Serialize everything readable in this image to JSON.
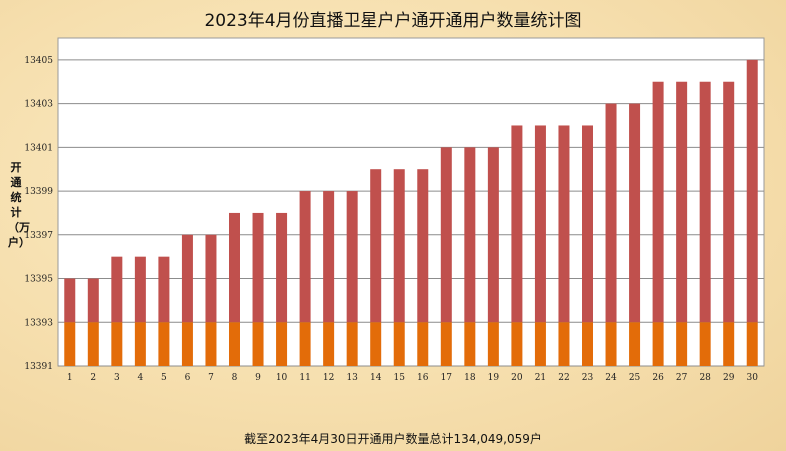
{
  "chart_data": {
    "type": "bar",
    "title": "2023年4月份直播卫星户户通开通用户数量统计图",
    "ylabel": "开通统计（万户）",
    "xlabel": "",
    "ylim": [
      13391,
      13406
    ],
    "yticks": [
      13391,
      13393,
      13395,
      13397,
      13399,
      13401,
      13403,
      13405
    ],
    "categories": [
      "1",
      "2",
      "3",
      "4",
      "5",
      "6",
      "7",
      "8",
      "9",
      "10",
      "11",
      "12",
      "13",
      "14",
      "15",
      "16",
      "17",
      "18",
      "19",
      "20",
      "21",
      "22",
      "23",
      "24",
      "25",
      "26",
      "27",
      "28",
      "29",
      "30"
    ],
    "values": [
      13395,
      13395,
      13396,
      13396,
      13396,
      13397,
      13397,
      13398,
      13398,
      13398,
      13399,
      13399,
      13399,
      13400,
      13400,
      13400,
      13401,
      13401,
      13401,
      13402,
      13402,
      13402,
      13402,
      13403,
      13403,
      13404,
      13404,
      13404,
      13404,
      13405
    ],
    "grid": true,
    "colors": {
      "bar_top": "#c0504d",
      "bar_bottom": "#e36c09",
      "grid": "#8c8c8c",
      "plot_bg": "#ffffff"
    }
  },
  "footnote": "截至2023年4月30日开通用户数量总计134,049,059户"
}
